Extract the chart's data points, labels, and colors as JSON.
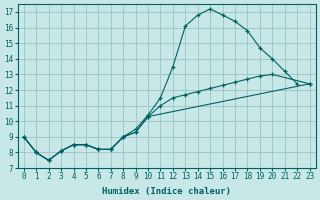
{
  "xlabel": "Humidex (Indice chaleur)",
  "xlim": [
    -0.5,
    23.5
  ],
  "ylim": [
    7,
    17.5
  ],
  "yticks": [
    7,
    8,
    9,
    10,
    11,
    12,
    13,
    14,
    15,
    16,
    17
  ],
  "xticks": [
    0,
    1,
    2,
    3,
    4,
    5,
    6,
    7,
    8,
    9,
    10,
    11,
    12,
    13,
    14,
    15,
    16,
    17,
    18,
    19,
    20,
    21,
    22,
    23
  ],
  "bg_color": "#c8e8e8",
  "grid_color": "#a0c8c8",
  "line_color": "#006060",
  "line1_x": [
    0,
    1,
    2,
    3,
    4,
    5,
    6,
    7,
    8,
    9,
    10,
    11,
    12,
    13,
    14,
    15,
    16,
    17,
    18,
    19,
    20,
    21,
    22
  ],
  "line1_y": [
    9.0,
    8.0,
    7.5,
    8.1,
    8.5,
    8.5,
    8.2,
    8.2,
    9.0,
    9.5,
    10.4,
    11.5,
    13.5,
    16.1,
    16.8,
    17.2,
    16.8,
    16.4,
    15.8,
    14.7,
    14.0,
    13.2,
    12.4
  ],
  "line2_x": [
    0,
    1,
    2,
    3,
    4,
    5,
    6,
    7,
    8,
    9,
    10,
    11,
    12,
    13,
    14,
    15,
    16,
    17,
    18,
    19,
    20,
    23
  ],
  "line2_y": [
    9.0,
    8.0,
    7.5,
    8.1,
    8.5,
    8.5,
    8.2,
    8.2,
    9.0,
    9.3,
    10.3,
    11.0,
    11.5,
    11.7,
    11.9,
    12.1,
    12.3,
    12.5,
    12.7,
    12.9,
    13.0,
    12.4
  ],
  "line3_x": [
    0,
    1,
    2,
    3,
    4,
    5,
    6,
    7,
    8,
    9,
    10,
    23
  ],
  "line3_y": [
    9.0,
    8.0,
    7.5,
    8.1,
    8.5,
    8.5,
    8.2,
    8.2,
    9.0,
    9.3,
    10.3,
    12.4
  ]
}
